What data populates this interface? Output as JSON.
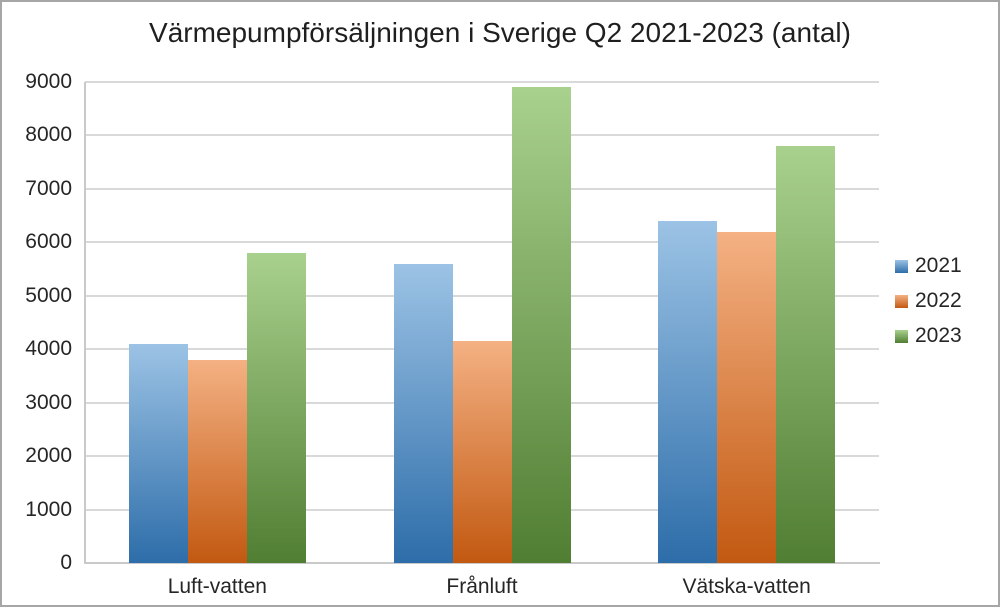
{
  "window": {
    "background": "#FFFFFF",
    "border_color": "#A6A6A6"
  },
  "chart_data": {
    "type": "bar",
    "title": "Värmepumpförsäljningen i Sverige Q2 2021-2023 (antal)",
    "categories": [
      "Luft-vatten",
      "Frånluft",
      "Vätska-vatten"
    ],
    "series": [
      {
        "name": "2021",
        "values": [
          4100,
          5600,
          6400
        ],
        "color_top": "#9CC3E5",
        "color_bottom": "#2D6DA9"
      },
      {
        "name": "2022",
        "values": [
          3800,
          4150,
          6200
        ],
        "color_top": "#F4B183",
        "color_bottom": "#C25911"
      },
      {
        "name": "2023",
        "values": [
          5800,
          8900,
          7800
        ],
        "color_top": "#A9D18E",
        "color bottom_unused": "",
        "color_bottom": "#507E32"
      }
    ],
    "ylim": [
      0,
      9000
    ],
    "ytick_interval": 1000,
    "ytick_labels": [
      "0",
      "1000",
      "2000",
      "3000",
      "4000",
      "5000",
      "6000",
      "7000",
      "8000",
      "9000"
    ],
    "grid": true,
    "gridline_color": "#D9D9D9",
    "axis_line_color": "#C9C9C9",
    "text_color": "#262626",
    "legend_position": "right",
    "legend": [
      "2021",
      "2022",
      "2023"
    ]
  }
}
